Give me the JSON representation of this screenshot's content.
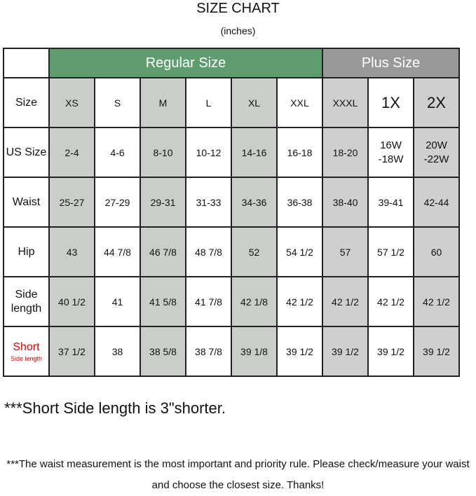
{
  "title": "SIZE CHART",
  "subtitle": "(inches)",
  "groups": {
    "regular": "Regular Size",
    "plus": "Plus Size"
  },
  "colors": {
    "regular_header": "#5f9d6e",
    "plus_header": "#999999",
    "shaded_regular": "#c9cfc8",
    "shaded_plus": "#cfcfcf",
    "short_label": "#dd0000"
  },
  "rows": [
    {
      "label": "Size",
      "values": [
        "XS",
        "S",
        "M",
        "L",
        "XL",
        "XXL",
        "XXXL",
        "1X",
        "2X"
      ]
    },
    {
      "label": "US Size",
      "values": [
        "2-4",
        "4-6",
        "8-10",
        "10-12",
        "14-16",
        "16-18",
        "18-20",
        "16W -18W",
        "20W -22W"
      ]
    },
    {
      "label": "Waist",
      "values": [
        "25-27",
        "27-29",
        "29-31",
        "31-33",
        "34-36",
        "36-38",
        "38-40",
        "39-41",
        "42-44"
      ]
    },
    {
      "label": "Hip",
      "values": [
        "43",
        "44 7/8",
        "46 7/8",
        "48 7/8",
        "52",
        "54 1/2",
        "57",
        "57 1/2",
        "60"
      ]
    },
    {
      "label": "Side length",
      "values": [
        "40 1/2",
        "41",
        "41 5/8",
        "41 7/8",
        "42 1/8",
        "42 1/2",
        "42 1/2",
        "42 1/2",
        "42 1/2"
      ]
    },
    {
      "label": "Short",
      "label_small": "Side length",
      "values": [
        "37 1/2",
        "38",
        "38 5/8",
        "38 7/8",
        "39 1/8",
        "39 1/2",
        "39 1/2",
        "39 1/2",
        "39 1/2"
      ]
    }
  ],
  "notes": {
    "short": "***Short Side length is  3\"shorter.",
    "waist": "***The waist measurement is the most important and priority rule. Please check/measure your waist and choose the closest size. Thanks!"
  }
}
